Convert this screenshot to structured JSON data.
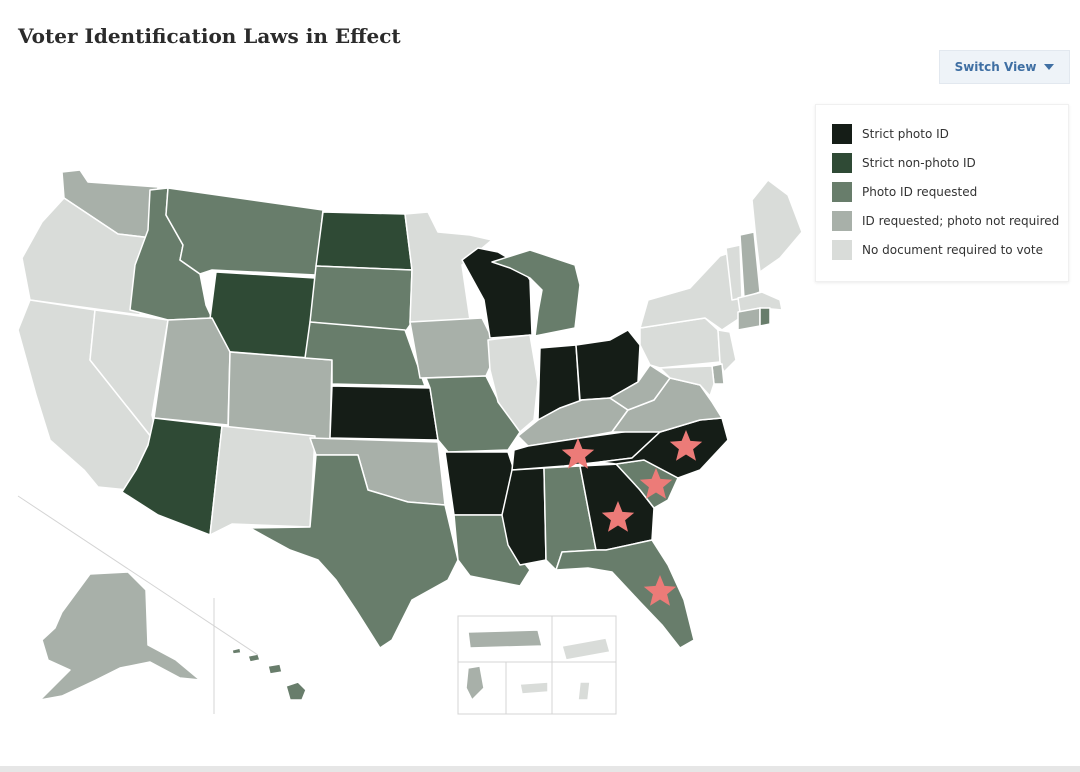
{
  "title": "Voter Identification Laws in Effect",
  "switch_view": {
    "label": "Switch View",
    "icon": "chevron-down-icon"
  },
  "categories": {
    "strict_photo": {
      "label": "Strict photo ID",
      "color": "#151d17"
    },
    "strict_nonphoto": {
      "label": "Strict non-photo ID",
      "color": "#2f4a35"
    },
    "photo_requested": {
      "label": "Photo ID requested",
      "color": "#687d6b"
    },
    "id_requested": {
      "label": "ID requested; photo not required",
      "color": "#a8b0a9"
    },
    "no_doc": {
      "label": "No document required to vote",
      "color": "#d9dcd9"
    }
  },
  "legend_order": [
    "strict_photo",
    "strict_nonphoto",
    "photo_requested",
    "id_requested",
    "no_doc"
  ],
  "star_color": "#ec7b78",
  "starred_states": [
    "TN",
    "NC",
    "SC",
    "GA",
    "FL"
  ],
  "states": {
    "WA": "id_requested",
    "OR": "no_doc",
    "CA": "no_doc",
    "NV": "no_doc",
    "ID": "photo_requested",
    "MT": "photo_requested",
    "WY": "strict_nonphoto",
    "UT": "id_requested",
    "CO": "id_requested",
    "AZ": "strict_nonphoto",
    "NM": "no_doc",
    "ND": "strict_nonphoto",
    "SD": "photo_requested",
    "NE": "photo_requested",
    "KS": "strict_photo",
    "OK": "id_requested",
    "TX": "photo_requested",
    "MN": "no_doc",
    "IA": "id_requested",
    "MO": "photo_requested",
    "AR": "strict_photo",
    "LA": "photo_requested",
    "WI": "strict_photo",
    "IL": "no_doc",
    "MI": "photo_requested",
    "IN": "strict_photo",
    "OH": "strict_photo",
    "KY": "id_requested",
    "TN": "strict_photo",
    "MS": "strict_photo",
    "AL": "photo_requested",
    "GA": "strict_photo",
    "FL": "photo_requested",
    "SC": "photo_requested",
    "NC": "strict_photo",
    "VA": "id_requested",
    "WV": "id_requested",
    "PA": "no_doc",
    "NY": "no_doc",
    "VT": "no_doc",
    "NH": "id_requested",
    "ME": "no_doc",
    "MA": "no_doc",
    "RI": "photo_requested",
    "CT": "id_requested",
    "NJ": "no_doc",
    "DE": "id_requested",
    "MD": "no_doc",
    "AK": "id_requested",
    "HI": "photo_requested",
    "PR": "id_requested",
    "GU": "id_requested",
    "VI": "no_doc",
    "AS": "no_doc",
    "MP": "no_doc"
  }
}
